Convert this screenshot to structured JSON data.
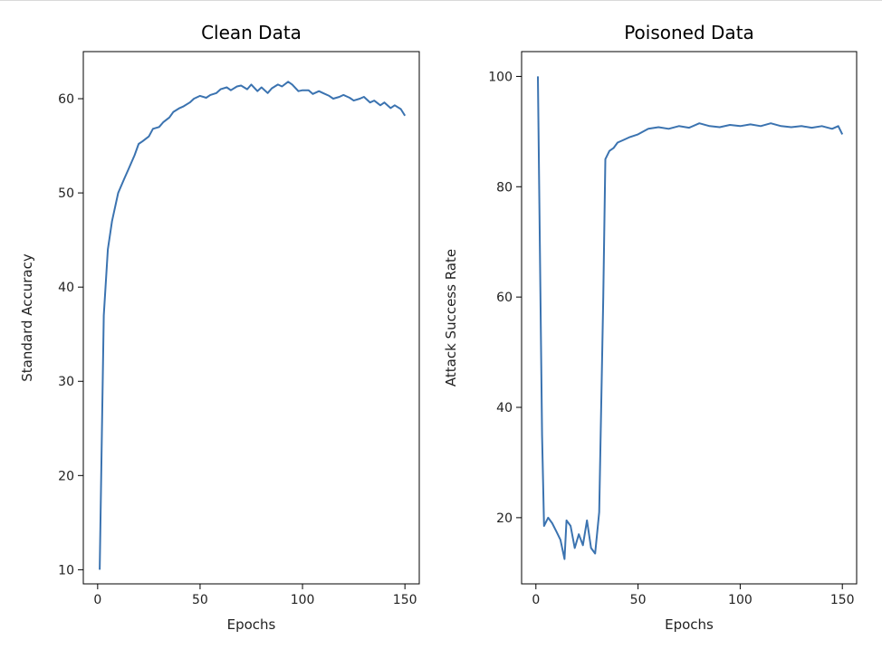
{
  "chart_data": [
    {
      "type": "line",
      "title": "Clean Data",
      "xlabel": "Epochs",
      "ylabel": "Standard Accuracy",
      "xlim": [
        -7,
        157
      ],
      "ylim": [
        8.5,
        65
      ],
      "xticks": [
        0,
        50,
        100,
        150
      ],
      "yticks": [
        10,
        20,
        30,
        40,
        50,
        60
      ],
      "grid": false,
      "color": "#3b73b0",
      "series": [
        {
          "x": [
            1,
            3,
            5,
            7,
            10,
            13,
            15,
            18,
            20,
            22,
            25,
            27,
            30,
            32,
            35,
            37,
            40,
            42,
            45,
            47,
            50,
            53,
            55,
            58,
            60,
            63,
            65,
            68,
            70,
            73,
            75,
            78,
            80,
            83,
            85,
            88,
            90,
            93,
            95,
            98,
            100,
            103,
            105,
            108,
            110,
            113,
            115,
            118,
            120,
            123,
            125,
            128,
            130,
            133,
            135,
            138,
            140,
            143,
            145,
            148,
            150
          ],
          "y": [
            10.0,
            37.0,
            44.0,
            47.0,
            50.0,
            51.5,
            52.5,
            54.0,
            55.2,
            55.5,
            56.0,
            56.8,
            57.0,
            57.5,
            58.0,
            58.6,
            59.0,
            59.2,
            59.6,
            60.0,
            60.3,
            60.1,
            60.4,
            60.6,
            61.0,
            61.2,
            60.9,
            61.3,
            61.4,
            61.0,
            61.5,
            60.8,
            61.2,
            60.6,
            61.1,
            61.5,
            61.3,
            61.8,
            61.5,
            60.8,
            60.9,
            60.9,
            60.5,
            60.8,
            60.6,
            60.3,
            60.0,
            60.2,
            60.4,
            60.1,
            59.8,
            60.0,
            60.2,
            59.6,
            59.8,
            59.3,
            59.6,
            59.0,
            59.3,
            58.9,
            58.2
          ]
        }
      ]
    },
    {
      "type": "line",
      "title": "Poisoned Data",
      "xlabel": "Epochs",
      "ylabel": "Attack Success Rate",
      "xlim": [
        -7,
        157
      ],
      "ylim": [
        8,
        104.5
      ],
      "xticks": [
        0,
        50,
        100,
        150
      ],
      "yticks": [
        20,
        40,
        60,
        80,
        100
      ],
      "grid": false,
      "color": "#3b73b0",
      "series": [
        {
          "x": [
            1,
            3,
            4,
            6,
            8,
            10,
            12,
            14,
            15,
            17,
            19,
            21,
            23,
            25,
            27,
            29,
            31,
            33,
            34,
            36,
            38,
            40,
            43,
            46,
            50,
            55,
            60,
            65,
            70,
            75,
            80,
            85,
            90,
            95,
            100,
            105,
            110,
            115,
            120,
            125,
            130,
            135,
            140,
            145,
            148,
            150
          ],
          "y": [
            100.0,
            35.0,
            18.5,
            20.0,
            19.0,
            17.5,
            16.0,
            12.5,
            19.5,
            18.5,
            14.5,
            17.0,
            15.0,
            19.5,
            14.5,
            13.5,
            21.0,
            60.0,
            85.0,
            86.5,
            87.0,
            88.0,
            88.5,
            89.0,
            89.5,
            90.5,
            90.8,
            90.5,
            91.0,
            90.7,
            91.5,
            91.0,
            90.8,
            91.2,
            91.0,
            91.3,
            91.0,
            91.5,
            91.0,
            90.8,
            91.0,
            90.7,
            91.0,
            90.5,
            91.0,
            89.5
          ]
        }
      ]
    }
  ]
}
